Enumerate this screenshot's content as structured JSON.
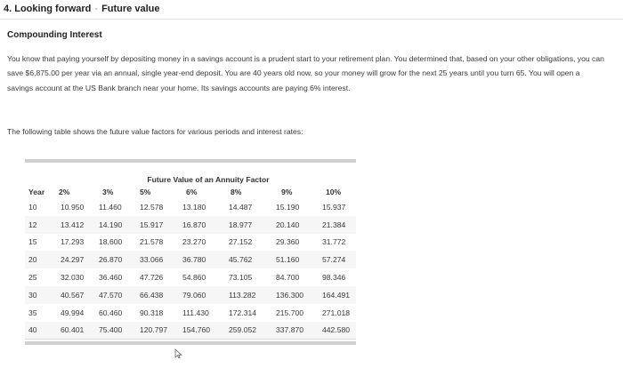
{
  "header": {
    "title": "4. Looking forward",
    "separator": "-",
    "subtitle": "Future value"
  },
  "section_heading": "Compounding Interest",
  "problem_text": "You know that paying yourself by depositing money in a savings account is a prudent start to your retirement plan. You determined that, based on your other obligations, you can save $6,875.00 per year via an annual, single year-end deposit. You are 40 years old now, so your money will grow for the next 25 years until you turn 65. You will open a savings account at the US Bank branch near your home. Its savings accounts are paying 6% interest.",
  "table_intro": "The following table shows the future value factors for various periods and interest rates:",
  "table": {
    "caption": "Future Value of an Annuity Factor",
    "headers": [
      "Year",
      "2%",
      "3%",
      "5%",
      "6%",
      "8%",
      "9%",
      "10%"
    ],
    "rows": [
      [
        "10",
        "10.950",
        "11.460",
        "12.578",
        "13.180",
        "14.487",
        "15.190",
        "15.937"
      ],
      [
        "12",
        "13.412",
        "14.190",
        "15.917",
        "16.870",
        "18.977",
        "20.140",
        "21.384"
      ],
      [
        "15",
        "17.293",
        "18.600",
        "21.578",
        "23.270",
        "27.152",
        "29.360",
        "31.772"
      ],
      [
        "20",
        "24.297",
        "26.870",
        "33.066",
        "36.780",
        "45.762",
        "51.160",
        "57.274"
      ],
      [
        "25",
        "32.030",
        "36.460",
        "47.726",
        "54.860",
        "73.105",
        "84.700",
        "98.346"
      ],
      [
        "30",
        "40.567",
        "47.570",
        "66.438",
        "79.060",
        "113.282",
        "136.300",
        "164.491"
      ],
      [
        "35",
        "49.994",
        "60.460",
        "90.318",
        "111.430",
        "172.314",
        "215.700",
        "271.018"
      ],
      [
        "40",
        "60.401",
        "75.400",
        "120.797",
        "154.760",
        "259.052",
        "337.870",
        "442.580"
      ]
    ]
  },
  "icons": {
    "cursor": "mouse-pointer-icon"
  }
}
